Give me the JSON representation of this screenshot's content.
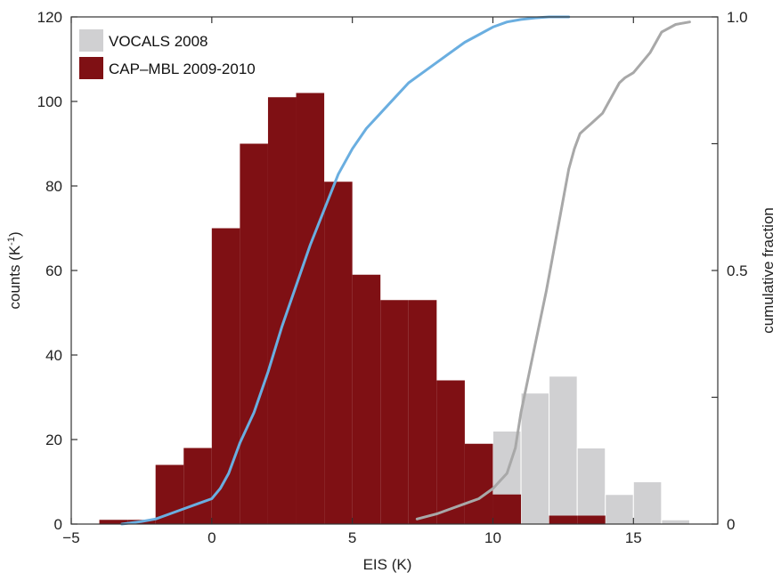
{
  "chart_data": {
    "type": "bar",
    "xlabel": "EIS (K)",
    "ylabel_left": "counts (K",
    "ylabel_left_sup": "-1",
    "ylabel_left_end": ")",
    "ylabel_right": "cumulative fraction",
    "xlim": [
      -5,
      18
    ],
    "ylim_left": [
      0,
      120
    ],
    "ylim_right": [
      0,
      1
    ],
    "x_ticks": [
      -5,
      0,
      5,
      10,
      15
    ],
    "x_tick_labels": [
      "−5",
      "0",
      "5",
      "10",
      "15"
    ],
    "y_left_ticks": [
      0,
      20,
      40,
      60,
      80,
      100,
      120
    ],
    "y_left_tick_labels": [
      "0",
      "20",
      "40",
      "60",
      "80",
      "100",
      "120"
    ],
    "y_right_ticks": [
      0,
      0.5,
      1.0
    ],
    "y_right_tick_labels": [
      "0",
      "0.5",
      "1.0"
    ],
    "y_right_minor_ticks": [
      0.25,
      0.75
    ],
    "legend_position": "top-left",
    "histograms": [
      {
        "name": "VOCALS 2008",
        "color": "#d0d0d2",
        "bin_edges": [
          7,
          8,
          9,
          10,
          11,
          12,
          13,
          14,
          15,
          16,
          17
        ],
        "counts": [
          2,
          4,
          6,
          22,
          31,
          35,
          18,
          7,
          10,
          1
        ]
      },
      {
        "name": "CAP–MBL 2009-2010",
        "color": "#7f1014",
        "bin_edges": [
          -4,
          -3,
          -2,
          -1,
          0,
          1,
          2,
          3,
          4,
          5,
          6,
          7,
          8,
          9,
          10,
          11,
          12,
          13,
          14,
          15,
          16,
          17,
          18
        ],
        "counts": [
          1,
          1,
          14,
          18,
          70,
          90,
          101,
          102,
          81,
          59,
          53,
          53,
          34,
          19,
          7,
          0,
          2,
          2,
          0,
          0,
          0,
          0
        ]
      }
    ],
    "cumulative_curves": [
      {
        "name": "CAP–MBL 2009-2010 cumulative",
        "color": "#6aaee0",
        "x": [
          -3.2,
          -2.5,
          -2.0,
          -1.5,
          -1.0,
          -0.5,
          0.0,
          0.3,
          0.6,
          1.0,
          1.5,
          2.0,
          2.5,
          3.0,
          3.5,
          4.0,
          4.5,
          5.0,
          5.5,
          6.0,
          6.5,
          7.0,
          7.5,
          8.0,
          8.5,
          9.0,
          9.5,
          10.0,
          10.5,
          11.0,
          11.5,
          12.0,
          12.7
        ],
        "y": [
          0.0,
          0.005,
          0.01,
          0.02,
          0.03,
          0.04,
          0.05,
          0.07,
          0.1,
          0.16,
          0.22,
          0.3,
          0.39,
          0.47,
          0.55,
          0.62,
          0.69,
          0.74,
          0.78,
          0.81,
          0.84,
          0.87,
          0.89,
          0.91,
          0.93,
          0.95,
          0.965,
          0.98,
          0.99,
          0.995,
          0.998,
          1.0,
          1.0
        ]
      },
      {
        "name": "VOCALS 2008 cumulative",
        "color": "#a8a8a8",
        "x": [
          7.3,
          8.0,
          8.5,
          9.0,
          9.5,
          10.0,
          10.5,
          10.8,
          11.0,
          11.3,
          11.6,
          11.9,
          12.1,
          12.3,
          12.5,
          12.7,
          12.9,
          13.1,
          13.3,
          13.5,
          13.7,
          13.9,
          14.1,
          14.3,
          14.5,
          14.7,
          15.0,
          15.3,
          15.6,
          16.0,
          16.5,
          17.0
        ],
        "y": [
          0.01,
          0.02,
          0.03,
          0.04,
          0.05,
          0.07,
          0.1,
          0.15,
          0.22,
          0.3,
          0.38,
          0.46,
          0.52,
          0.58,
          0.64,
          0.7,
          0.74,
          0.77,
          0.78,
          0.79,
          0.8,
          0.81,
          0.83,
          0.85,
          0.87,
          0.88,
          0.89,
          0.91,
          0.93,
          0.97,
          0.985,
          0.99
        ]
      }
    ]
  }
}
